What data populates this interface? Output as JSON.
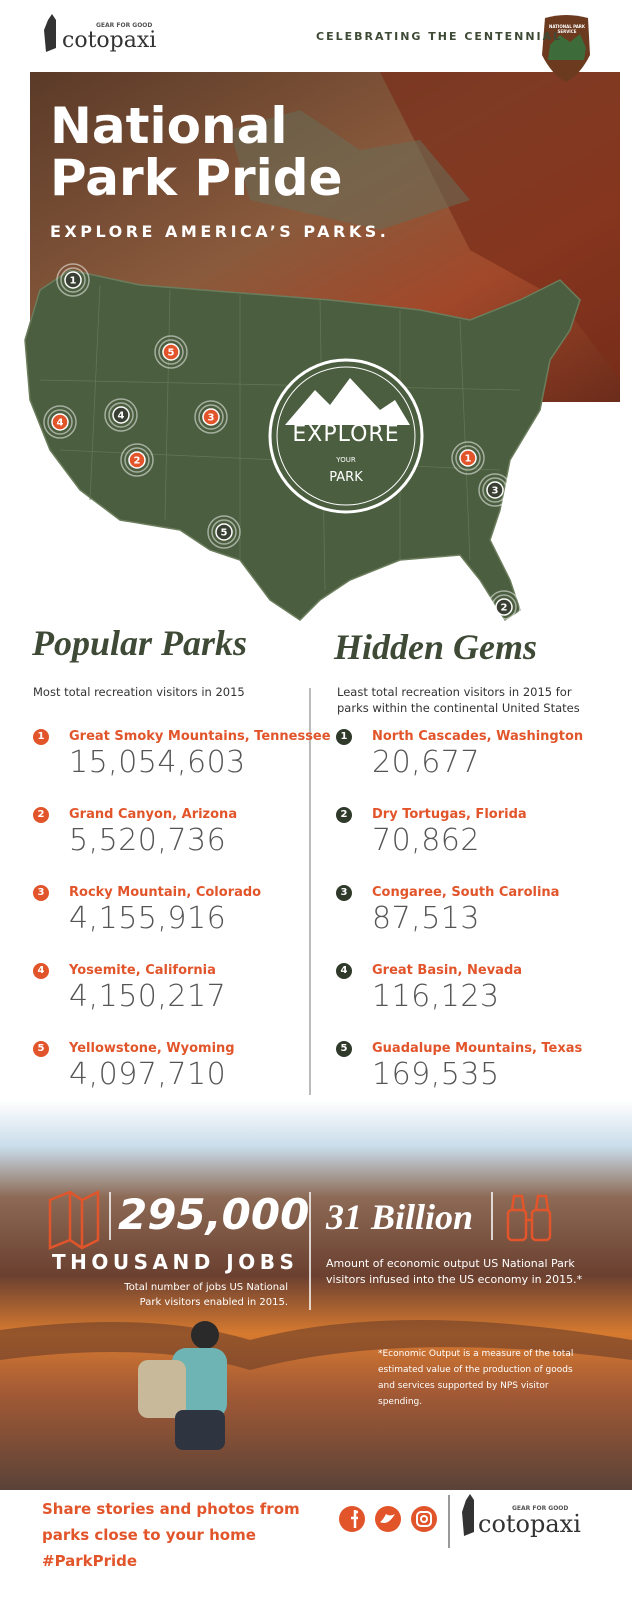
{
  "header": {
    "brand_tagline": "GEAR FOR GOOD",
    "brand": "cotopaxi",
    "centennial": "CELEBRATING THE CENTENNIAL",
    "badge": "NATIONAL PARK SERVICE"
  },
  "hero": {
    "title_line1": "National",
    "title_line2": "Park Pride",
    "subtitle": "EXPLORE AMERICA’S PARKS.",
    "stamp": {
      "top": "EXPLORE",
      "middle": "YOUR",
      "bottom": "PARK"
    },
    "popular_markers": [
      "1",
      "2",
      "3",
      "4",
      "5"
    ],
    "hidden_markers": [
      "1",
      "2",
      "3",
      "4",
      "5"
    ]
  },
  "popular": {
    "heading": "Popular Parks",
    "description": "Most total recreation visitors in 2015",
    "items": [
      {
        "rank": "1",
        "name": "Great Smoky Mountains, Tennessee",
        "visitors": "15,054,603"
      },
      {
        "rank": "2",
        "name": "Grand Canyon, Arizona",
        "visitors": "5,520,736"
      },
      {
        "rank": "3",
        "name": "Rocky Mountain, Colorado",
        "visitors": "4,155,916"
      },
      {
        "rank": "4",
        "name": "Yosemite, California",
        "visitors": "4,150,217"
      },
      {
        "rank": "5",
        "name": "Yellowstone, Wyoming",
        "visitors": "4,097,710"
      }
    ]
  },
  "hidden": {
    "heading": "Hidden Gems",
    "description": "Least total recreation visitors in 2015 for parks within the continental United States",
    "items": [
      {
        "rank": "1",
        "name": "North Cascades, Washington",
        "visitors": "20,677"
      },
      {
        "rank": "2",
        "name": "Dry Tortugas, Florida",
        "visitors": "70,862"
      },
      {
        "rank": "3",
        "name": "Congaree, South Carolina",
        "visitors": "87,513"
      },
      {
        "rank": "4",
        "name": "Great Basin, Nevada",
        "visitors": "116,123"
      },
      {
        "rank": "5",
        "name": "Guadalupe Mountains, Texas",
        "visitors": "169,535"
      }
    ]
  },
  "stats": {
    "jobs_value": "295,000",
    "jobs_label": "THOUSAND JOBS",
    "jobs_note": "Total number of jobs US National Park visitors enabled in 2015.",
    "economy_value": "31 Billion",
    "economy_note": "Amount of economic output US National Park visitors infused into the US economy in 2015.*",
    "footnote": "*Economic Output is a measure of the total estimated value of the production of goods and services supported by NPS visitor spending."
  },
  "footer": {
    "cta": "Share stories and photos from parks close to your home #ParkPride",
    "brand_tagline": "GEAR FOR GOOD",
    "brand": "cotopaxi"
  }
}
